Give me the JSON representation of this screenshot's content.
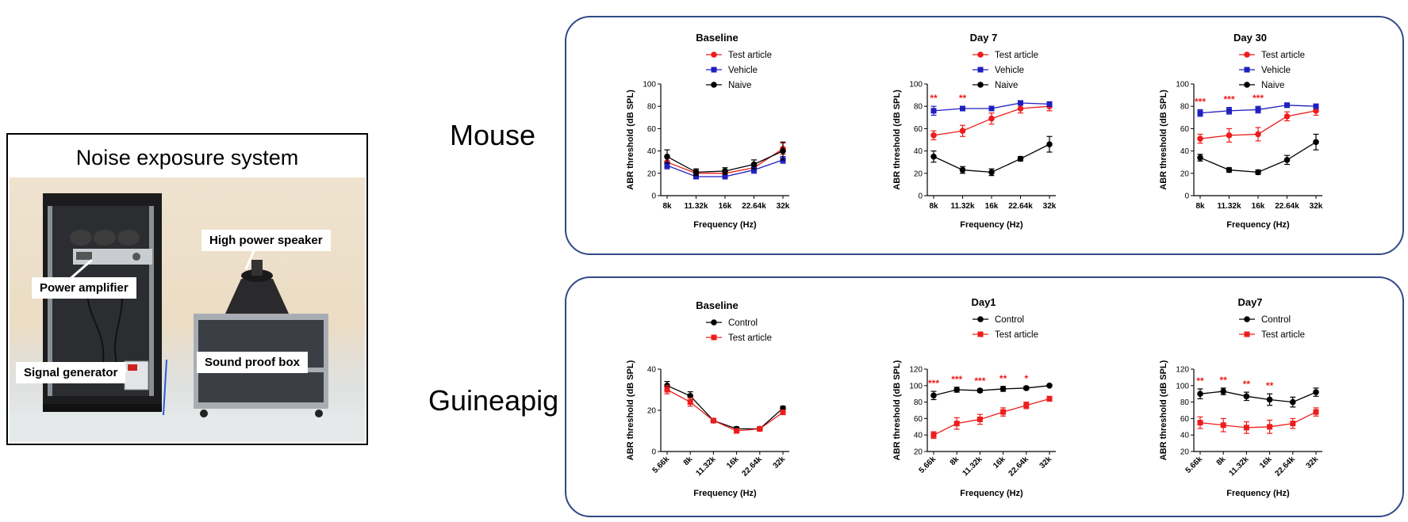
{
  "photo_panel": {
    "title": "Noise exposure system",
    "callouts": {
      "speaker": "High power speaker",
      "amplifier": "Power amplifier",
      "generator": "Signal generator",
      "box": "Sound proof box"
    }
  },
  "groups": [
    {
      "label": "Mouse"
    },
    {
      "label": "Guineapig"
    }
  ],
  "colors": {
    "test_article": "#ee1c1c",
    "vehicle": "#1f1fbf",
    "naive": "#000000",
    "control": "#000000",
    "panel_border": "#2f4a86"
  },
  "chart_data": [
    {
      "id": "mouse-baseline",
      "type": "line",
      "title": "Baseline",
      "xlabel": "Frequency (Hz)",
      "ylabel": "ABR threshold (dB SPL)",
      "categories": [
        "8k",
        "11.32k",
        "16k",
        "22.64k",
        "32k"
      ],
      "ylim": [
        0,
        100
      ],
      "yticks": [
        0,
        20,
        40,
        60,
        80,
        100
      ],
      "rotate_x": false,
      "legend_position": "top-right",
      "series": [
        {
          "name": "Test article",
          "color": "#ee1c1c",
          "marker": "circle",
          "values": [
            30,
            20,
            20,
            25,
            42
          ],
          "errors": [
            4,
            3,
            3,
            3,
            5
          ]
        },
        {
          "name": "Vehicle",
          "color": "#1f1fbf",
          "marker": "square",
          "values": [
            27,
            17,
            17,
            23,
            32
          ],
          "errors": [
            3,
            2,
            2,
            3,
            3
          ]
        },
        {
          "name": "Naive",
          "color": "#000000",
          "marker": "circle",
          "values": [
            35,
            21,
            22,
            28,
            40
          ],
          "errors": [
            6,
            3,
            3,
            4,
            8
          ]
        }
      ],
      "annotations": []
    },
    {
      "id": "mouse-day7",
      "type": "line",
      "title": "Day 7",
      "xlabel": "Frequency (Hz)",
      "ylabel": "ABR threshold (dB SPL)",
      "categories": [
        "8k",
        "11.32k",
        "16k",
        "22.64k",
        "32k"
      ],
      "ylim": [
        0,
        100
      ],
      "yticks": [
        0,
        20,
        40,
        60,
        80,
        100
      ],
      "rotate_x": false,
      "legend_position": "top-right",
      "series": [
        {
          "name": "Test article",
          "color": "#ee1c1c",
          "marker": "circle",
          "values": [
            54,
            58,
            69,
            78,
            80
          ],
          "errors": [
            4,
            5,
            5,
            4,
            4
          ]
        },
        {
          "name": "Vehicle",
          "color": "#1f1fbf",
          "marker": "square",
          "values": [
            76,
            78,
            78,
            83,
            82
          ],
          "errors": [
            4,
            2,
            2,
            2,
            2
          ]
        },
        {
          "name": "Naive",
          "color": "#000000",
          "marker": "circle",
          "values": [
            35,
            23,
            21,
            33,
            46
          ],
          "errors": [
            5,
            3,
            3,
            2,
            7
          ]
        }
      ],
      "annotations": [
        {
          "index": 0,
          "text": "**"
        },
        {
          "index": 1,
          "text": "**"
        }
      ]
    },
    {
      "id": "mouse-day30",
      "type": "line",
      "title": "Day 30",
      "xlabel": "Frequency (Hz)",
      "ylabel": "ABR threshold (dB SPL)",
      "categories": [
        "8k",
        "11.32k",
        "16k",
        "22.64k",
        "32k"
      ],
      "ylim": [
        0,
        100
      ],
      "yticks": [
        0,
        20,
        40,
        60,
        80,
        100
      ],
      "rotate_x": false,
      "legend_position": "top-right",
      "series": [
        {
          "name": "Test article",
          "color": "#ee1c1c",
          "marker": "circle",
          "values": [
            51,
            54,
            55,
            71,
            76
          ],
          "errors": [
            4,
            6,
            6,
            4,
            4
          ]
        },
        {
          "name": "Vehicle",
          "color": "#1f1fbf",
          "marker": "square",
          "values": [
            74,
            76,
            77,
            81,
            80
          ],
          "errors": [
            3,
            3,
            3,
            2,
            2
          ]
        },
        {
          "name": "Naive",
          "color": "#000000",
          "marker": "circle",
          "values": [
            34,
            23,
            21,
            32,
            48
          ],
          "errors": [
            3,
            2,
            2,
            4,
            7
          ]
        }
      ],
      "annotations": [
        {
          "index": 0,
          "text": "***"
        },
        {
          "index": 1,
          "text": "***"
        },
        {
          "index": 2,
          "text": "***"
        }
      ]
    },
    {
      "id": "guineapig-baseline",
      "type": "line",
      "title": "Baseline",
      "xlabel": "Frequency (Hz)",
      "ylabel": "ABR threshold (dB SPL)",
      "categories": [
        "5.66k",
        "8k",
        "11.32k",
        "16k",
        "22.64k",
        "32k"
      ],
      "ylim": [
        0,
        40
      ],
      "yticks": [
        0,
        20,
        40
      ],
      "rotate_x": true,
      "legend_position": "top-right",
      "series": [
        {
          "name": "Control",
          "color": "#000000",
          "marker": "circle",
          "values": [
            32,
            27,
            15,
            11,
            11,
            21
          ],
          "errors": [
            2,
            2,
            1,
            1,
            1,
            1
          ]
        },
        {
          "name": "Test article",
          "color": "#ee1c1c",
          "marker": "square",
          "values": [
            30,
            24,
            15,
            10,
            11,
            19
          ],
          "errors": [
            2,
            2,
            1,
            1,
            1,
            1
          ]
        }
      ],
      "annotations": []
    },
    {
      "id": "guineapig-day1",
      "type": "line",
      "title": "Day1",
      "xlabel": "Frequency (Hz)",
      "ylabel": "ABR threshold (dB SPL)",
      "categories": [
        "5.66k",
        "8k",
        "11.32k",
        "16k",
        "22.64k",
        "32k"
      ],
      "ylim": [
        20,
        120
      ],
      "yticks": [
        20,
        40,
        60,
        80,
        100,
        120
      ],
      "rotate_x": true,
      "legend_position": "top-right",
      "series": [
        {
          "name": "Control",
          "color": "#000000",
          "marker": "circle",
          "values": [
            88,
            95,
            94,
            96,
            97,
            100
          ],
          "errors": [
            5,
            3,
            2,
            3,
            2,
            1
          ]
        },
        {
          "name": "Test article",
          "color": "#ee1c1c",
          "marker": "square",
          "values": [
            40,
            54,
            59,
            68,
            76,
            84
          ],
          "errors": [
            4,
            7,
            6,
            5,
            4,
            3
          ]
        }
      ],
      "annotations": [
        {
          "index": 0,
          "text": "***"
        },
        {
          "index": 1,
          "text": "***"
        },
        {
          "index": 2,
          "text": "***"
        },
        {
          "index": 3,
          "text": "**"
        },
        {
          "index": 4,
          "text": "*"
        }
      ]
    },
    {
      "id": "guineapig-day7",
      "type": "line",
      "title": "Day7",
      "xlabel": "Frequency (Hz)",
      "ylabel": "ABR threshold (dB SPL)",
      "categories": [
        "5.66k",
        "8k",
        "11.32k",
        "16k",
        "22.64k",
        "32k"
      ],
      "ylim": [
        20,
        120
      ],
      "yticks": [
        20,
        40,
        60,
        80,
        100,
        120
      ],
      "rotate_x": true,
      "legend_position": "top-right",
      "series": [
        {
          "name": "Control",
          "color": "#000000",
          "marker": "circle",
          "values": [
            90,
            93,
            87,
            83,
            80,
            92
          ],
          "errors": [
            6,
            4,
            5,
            7,
            6,
            5
          ]
        },
        {
          "name": "Test article",
          "color": "#ee1c1c",
          "marker": "square",
          "values": [
            55,
            52,
            49,
            50,
            54,
            68
          ],
          "errors": [
            7,
            8,
            7,
            8,
            6,
            5
          ]
        }
      ],
      "annotations": [
        {
          "index": 0,
          "text": "**"
        },
        {
          "index": 1,
          "text": "**"
        },
        {
          "index": 2,
          "text": "**"
        },
        {
          "index": 3,
          "text": "**"
        }
      ]
    }
  ]
}
